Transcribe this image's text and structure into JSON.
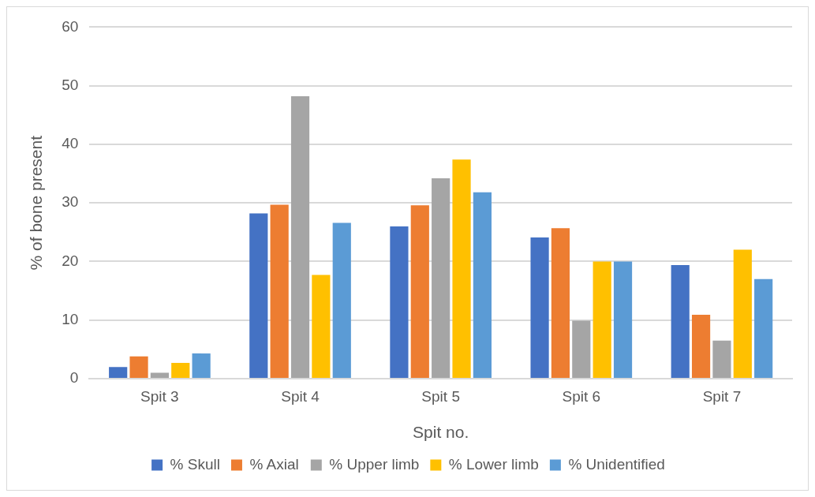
{
  "chart_data": {
    "type": "bar",
    "xlabel": "Spit no.",
    "ylabel": "% of bone present",
    "categories": [
      "Spit 3",
      "Spit 4",
      "Spit 5",
      "Spit 6",
      "Spit 7"
    ],
    "series": [
      {
        "name": "% Skull",
        "color": "#4472c4",
        "values": [
          2.0,
          28.2,
          26.0,
          24.1,
          19.4
        ]
      },
      {
        "name": "% Axial",
        "color": "#ed7d31",
        "values": [
          3.8,
          29.7,
          29.6,
          25.7,
          10.9
        ]
      },
      {
        "name": "% Upper limb",
        "color": "#a5a5a5",
        "values": [
          1.0,
          48.2,
          34.2,
          9.9,
          6.5
        ]
      },
      {
        "name": "% Lower limb",
        "color": "#ffc000",
        "values": [
          2.7,
          17.7,
          37.4,
          20.0,
          22.0
        ]
      },
      {
        "name": "% Unidentified",
        "color": "#5b9bd5",
        "values": [
          4.3,
          26.6,
          31.8,
          20.0,
          17.0
        ]
      }
    ],
    "ylim": [
      0,
      60
    ],
    "yticks": [
      0,
      10,
      20,
      30,
      40,
      50,
      60
    ],
    "grid": "y",
    "legend": "bottom"
  }
}
